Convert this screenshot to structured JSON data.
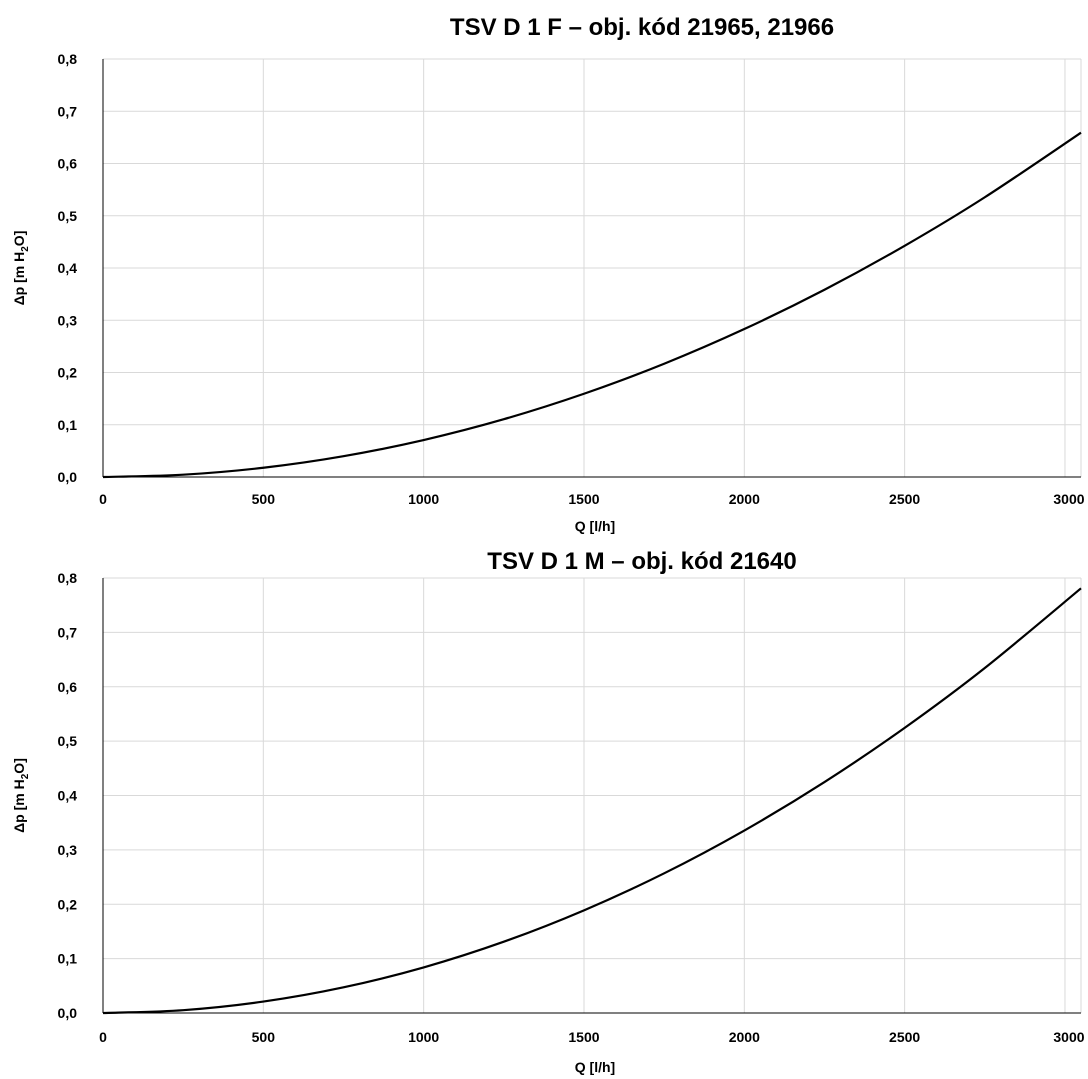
{
  "chart_data": [
    {
      "type": "line",
      "title": "TSV D 1 F – obj. kód 21965, 21966",
      "xlabel": "Q [l/h]",
      "ylabel": {
        "main": "Δp [m H",
        "sub": "2",
        "tail": "O]"
      },
      "xlim": [
        0,
        3050
      ],
      "ylim": [
        0,
        0.8
      ],
      "x_ticks": [
        "0",
        "500",
        "1000",
        "1500",
        "2000",
        "2500",
        "3000"
      ],
      "x_tick_values": [
        0,
        500,
        1000,
        1500,
        2000,
        2500,
        3000
      ],
      "y_ticks": [
        "0,0",
        "0,1",
        "0,2",
        "0,3",
        "0,4",
        "0,5",
        "0,6",
        "0,7",
        "0,8"
      ],
      "y_tick_values": [
        0,
        0.1,
        0.2,
        0.3,
        0.4,
        0.5,
        0.6,
        0.7,
        0.8
      ],
      "grid": true,
      "series": [
        {
          "x": [
            0,
            250,
            500,
            750,
            1000,
            1250,
            1500,
            1750,
            2000,
            2250,
            2500,
            2750,
            3050
          ],
          "y": [
            0,
            0.0044,
            0.0177,
            0.0398,
            0.0708,
            0.1106,
            0.1593,
            0.2168,
            0.2832,
            0.3584,
            0.4425,
            0.5354,
            0.659
          ]
        }
      ]
    },
    {
      "type": "line",
      "title": "TSV D 1 M – obj. kód 21640",
      "xlabel": "Q [l/h]",
      "ylabel": {
        "main": "Δp [m H",
        "sub": "2",
        "tail": "O]"
      },
      "xlim": [
        0,
        3050
      ],
      "ylim": [
        0,
        0.8
      ],
      "x_ticks": [
        "0",
        "500",
        "1000",
        "1500",
        "2000",
        "2500",
        "3000"
      ],
      "x_tick_values": [
        0,
        500,
        1000,
        1500,
        2000,
        2500,
        3000
      ],
      "y_ticks": [
        "0,0",
        "0,1",
        "0,2",
        "0,3",
        "0,4",
        "0,5",
        "0,6",
        "0,7",
        "0,8"
      ],
      "y_tick_values": [
        0,
        0.1,
        0.2,
        0.3,
        0.4,
        0.5,
        0.6,
        0.7,
        0.8
      ],
      "grid": true,
      "series": [
        {
          "x": [
            0,
            250,
            500,
            750,
            1000,
            1250,
            1500,
            1750,
            2000,
            2250,
            2500,
            2750,
            3050
          ],
          "y": [
            0,
            0.0052,
            0.021,
            0.0472,
            0.0839,
            0.1311,
            0.1888,
            0.2569,
            0.3356,
            0.4247,
            0.5244,
            0.6345,
            0.781
          ]
        }
      ]
    }
  ]
}
